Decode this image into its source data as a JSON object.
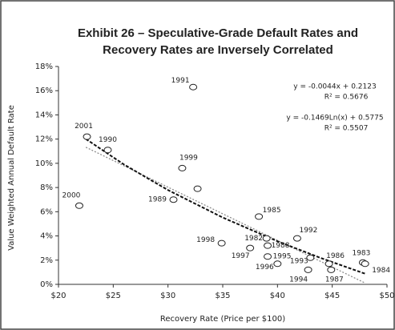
{
  "chart_data": {
    "type": "scatter",
    "title_lines": [
      "Exhibit 26 – Speculative-Grade Default Rates and",
      "Recovery Rates are Inversely Correlated"
    ],
    "x_label": "Recovery Rate (Price per $100)",
    "y_label": "Value Weighted Annual Default Rate",
    "labels": [
      "2001",
      "2000",
      "1990",
      "1991",
      "1999",
      "1989",
      null,
      "1985",
      "1998",
      "1982",
      "1997",
      "1988",
      "1995",
      "1996",
      "1992",
      "1993",
      "1994",
      "1986",
      "1987",
      "1983",
      "1984"
    ],
    "x": [
      22.6,
      21.9,
      24.5,
      32.3,
      31.3,
      30.5,
      32.7,
      38.3,
      34.9,
      39.0,
      37.5,
      39.1,
      39.1,
      40.0,
      41.8,
      43.0,
      42.8,
      44.7,
      44.9,
      47.8,
      48.0
    ],
    "values": [
      12.2,
      6.5,
      11.1,
      16.3,
      9.6,
      7.0,
      7.9,
      5.6,
      3.4,
      3.8,
      3.0,
      3.2,
      2.3,
      1.7,
      3.8,
      2.2,
      1.2,
      1.7,
      1.2,
      1.8,
      1.7
    ],
    "trendlines": [
      {
        "x": [
          22.5,
          48
        ],
        "values": [
          11.33,
          0.11
        ]
      },
      {
        "x": [
          22.5,
          26,
          30,
          35,
          40,
          44,
          48
        ],
        "values": [
          12.01,
          9.89,
          7.79,
          5.52,
          3.56,
          2.16,
          0.88
        ]
      }
    ],
    "annotations": [
      "y = -0.0044x + 0.2123",
      "R² = 0.5676",
      "y = -0.1469Ln(x) + 0.5775",
      "R² = 0.5507"
    ],
    "xlim": [
      20,
      50
    ],
    "xticks": [
      {
        "value": 20,
        "label": "$20"
      },
      {
        "value": 25,
        "label": "$25"
      },
      {
        "value": 30,
        "label": "$30"
      },
      {
        "value": 35,
        "label": "$35"
      },
      {
        "value": 40,
        "label": "$40"
      },
      {
        "value": 45,
        "label": "$45"
      },
      {
        "value": 50,
        "label": "$50"
      }
    ],
    "ylim": [
      0,
      18
    ],
    "yticks": [
      {
        "value": 0,
        "label": "0%"
      },
      {
        "value": 2,
        "label": "2%"
      },
      {
        "value": 4,
        "label": "4%"
      },
      {
        "value": 6,
        "label": "6%"
      },
      {
        "value": 8,
        "label": "8%"
      },
      {
        "value": 10,
        "label": "10%"
      },
      {
        "value": 12,
        "label": "12%"
      },
      {
        "value": 14,
        "label": "14%"
      },
      {
        "value": 16,
        "label": "16%"
      },
      {
        "value": 18,
        "label": "18%"
      }
    ]
  }
}
